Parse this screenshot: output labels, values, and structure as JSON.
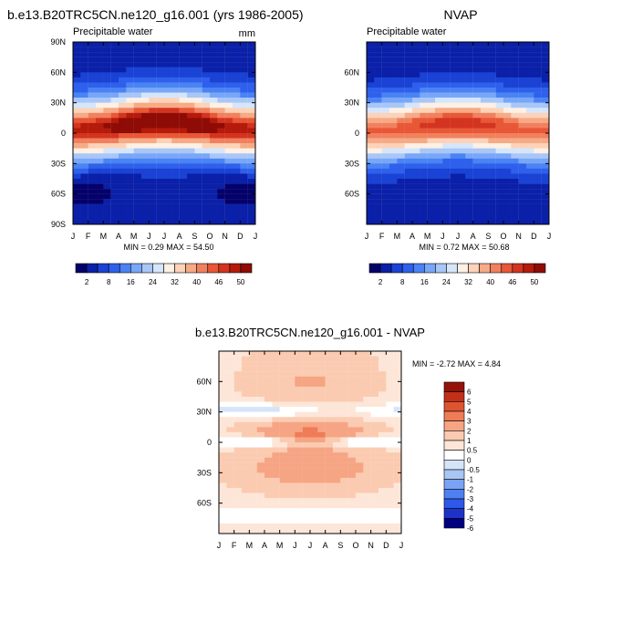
{
  "months": [
    "J",
    "F",
    "M",
    "A",
    "M",
    "J",
    "J",
    "A",
    "S",
    "O",
    "N",
    "D",
    "J"
  ],
  "colors": {
    "abs_palette": [
      "#04016a",
      "#0b20a8",
      "#1a43d5",
      "#2f60ec",
      "#4a83f4",
      "#78a7f7",
      "#a8c6f7",
      "#d5e6fb",
      "#fdf0e4",
      "#fcd2b9",
      "#f6aa86",
      "#f1805e",
      "#e85736",
      "#d33420",
      "#b51b0b",
      "#8f0c06"
    ],
    "anom_palette": [
      "#000080",
      "#1d33c7",
      "#2d58e8",
      "#4f7ff1",
      "#7ba3f4",
      "#a9c5f5",
      "#d6e4fa",
      "#ffffff",
      "#fde6d8",
      "#fbcbb1",
      "#f6a584",
      "#ef7c57",
      "#de5432",
      "#c2301a",
      "#951208"
    ]
  },
  "chart_data": [
    {
      "type": "heatmap",
      "title": "b.e13.B20TRC5CN.ne120_g16.001 (yrs 1986-2005)",
      "subtitle_left": "Precipitable water",
      "units": "mm",
      "xlabel": "",
      "ylabel": "",
      "x_ticks": [
        "J",
        "F",
        "M",
        "A",
        "M",
        "J",
        "J",
        "A",
        "S",
        "O",
        "N",
        "D",
        "J"
      ],
      "y_ticks": [
        "90N",
        "60N",
        "30N",
        "0",
        "30S",
        "60S",
        "90S"
      ],
      "ylim": [
        -90,
        90
      ],
      "stats": "MIN =   0.29 MAX =  54.50",
      "min": 0.29,
      "max": 54.5,
      "colorbar_levels": [
        2,
        5,
        8,
        12,
        16,
        20,
        24,
        28,
        32,
        36,
        40,
        43,
        46,
        48,
        50
      ],
      "colorbar_labels": [
        "2",
        "8",
        "16",
        "24",
        "32",
        "40",
        "46",
        "50"
      ]
    },
    {
      "type": "heatmap",
      "title": "NVAP",
      "subtitle_left": "Precipitable water",
      "units": "",
      "xlabel": "",
      "ylabel": "",
      "x_ticks": [
        "J",
        "F",
        "M",
        "A",
        "M",
        "J",
        "J",
        "A",
        "S",
        "O",
        "N",
        "D",
        "J"
      ],
      "y_ticks": [
        "60N",
        "30N",
        "0",
        "30S",
        "60S"
      ],
      "ylim": [
        -90,
        90
      ],
      "stats": "MIN =   0.72 MAX =  50.68",
      "min": 0.72,
      "max": 50.68,
      "colorbar_levels": [
        2,
        5,
        8,
        12,
        16,
        20,
        24,
        28,
        32,
        36,
        40,
        43,
        46,
        48,
        50
      ],
      "colorbar_labels": [
        "2",
        "8",
        "16",
        "24",
        "32",
        "40",
        "46",
        "50"
      ]
    },
    {
      "type": "heatmap",
      "title": "b.e13.B20TRC5CN.ne120_g16.001 - NVAP",
      "subtitle_left": "",
      "units": "",
      "xlabel": "",
      "ylabel": "",
      "x_ticks": [
        "J",
        "F",
        "M",
        "A",
        "M",
        "J",
        "J",
        "A",
        "S",
        "O",
        "N",
        "D",
        "J"
      ],
      "y_ticks": [
        "60N",
        "30N",
        "0",
        "30S",
        "60S"
      ],
      "ylim": [
        -90,
        90
      ],
      "stats": "MIN =  -2.72 MAX =   4.84",
      "min": -2.72,
      "max": 4.84,
      "colorbar_levels": [
        -6,
        -5,
        -4,
        -3,
        -2,
        -1,
        -0.5,
        0,
        0.5,
        1,
        2,
        3,
        4,
        5,
        6
      ],
      "colorbar_labels": [
        "6",
        "5",
        "4",
        "3",
        "2",
        "1",
        "0.5",
        "0",
        "-0.5",
        "-1",
        "-2",
        "-3",
        "-4",
        "-5",
        "-6"
      ]
    }
  ]
}
